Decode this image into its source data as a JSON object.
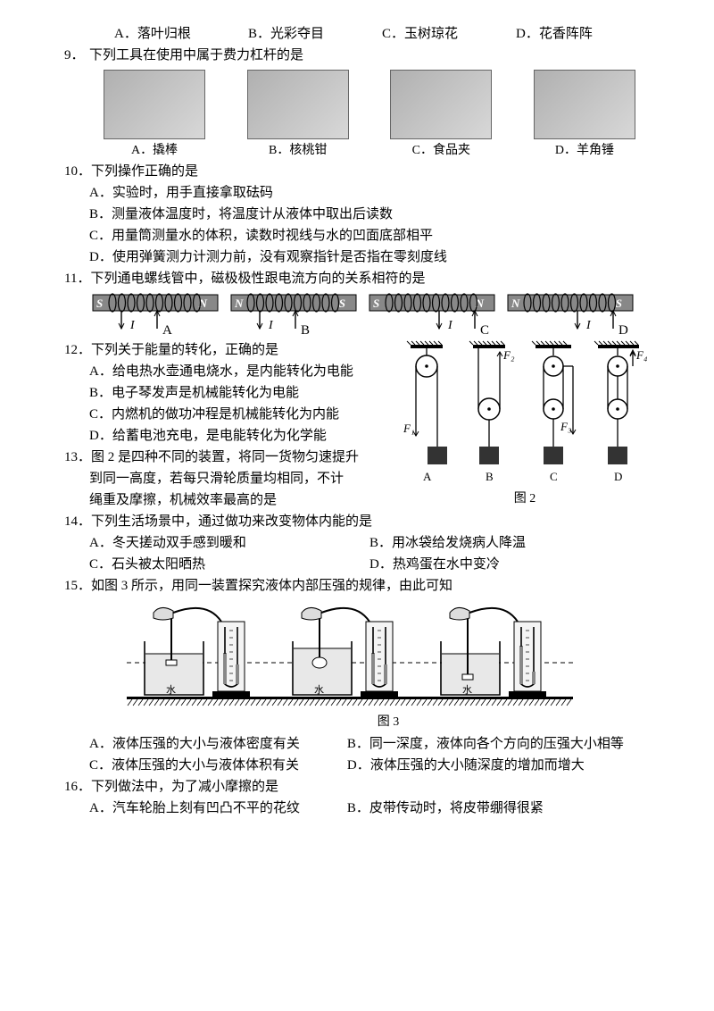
{
  "q8": {
    "options": [
      {
        "letter": "A",
        "text": "．落叶归根"
      },
      {
        "letter": "B",
        "text": "．光彩夺目"
      },
      {
        "letter": "C",
        "text": "．玉树琼花"
      },
      {
        "letter": "D",
        "text": "．花香阵阵"
      }
    ]
  },
  "q9": {
    "num": "9．",
    "stem": "下列工具在使用中属于费力杠杆的是",
    "images": [
      {
        "letter": "A",
        "caption": "．撬棒"
      },
      {
        "letter": "B",
        "caption": "．核桃钳"
      },
      {
        "letter": "C",
        "caption": "．食品夹"
      },
      {
        "letter": "D",
        "caption": "．羊角锤"
      }
    ]
  },
  "q10": {
    "num": "10．",
    "stem": "下列操作正确的是",
    "opts": [
      "A．实验时，用手直接拿取砝码",
      "B．测量液体温度时，将温度计从液体中取出后读数",
      "C．用量筒测量水的体积，读数时视线与水的凹面底部相平",
      "D．使用弹簧测力计测力前，没有观察指针是否指在零刻度线"
    ]
  },
  "q11": {
    "num": "11．",
    "stem": "下列通电螺线管中，磁极极性跟电流方向的关系相符的是",
    "coils": [
      {
        "left": "S",
        "right": "N",
        "letter": "A",
        "current_from": "left"
      },
      {
        "left": "N",
        "right": "S",
        "letter": "B",
        "current_from": "left"
      },
      {
        "left": "S",
        "right": "N",
        "letter": "C",
        "current_from": "right"
      },
      {
        "left": "N",
        "right": "S",
        "letter": "D",
        "current_from": "right"
      }
    ],
    "coil_style": {
      "bar_fill": "#888888",
      "bar_stroke": "#000000",
      "label_fill": "#ffffff",
      "label_fontsize": 13,
      "label_style": "italic bold",
      "coil_stroke": "#000000"
    }
  },
  "q12": {
    "num": "12．",
    "stem": "下列关于能量的转化，正确的是",
    "opts": [
      "A．给电热水壶通电烧水，是内能转化为电能",
      "B．电子琴发声是机械能转化为电能",
      "C．内燃机的做功冲程是机械能转化为内能",
      "D．给蓄电池充电，是电能转化为化学能"
    ]
  },
  "q13": {
    "num": "13．",
    "stem1": "图 2 是四种不同的装置，将同一货物匀速提升",
    "stem2": "到同一高度，若每只滑轮质量均相同，不计",
    "stem3": "绳重及摩擦，机械效率最高的是",
    "pulleys": {
      "labels": [
        "A",
        "B",
        "C",
        "D"
      ],
      "forces": [
        "F₁",
        "F₂",
        "F₃",
        "F₄"
      ]
    },
    "fig_label": "图 2"
  },
  "q14": {
    "num": "14．",
    "stem": "下列生活场景中，通过做功来改变物体内能的是",
    "opts": [
      [
        "A．冬天搓动双手感到暖和",
        "B．用冰袋给发烧病人降温"
      ],
      [
        "C．石头被太阳晒热",
        "D．热鸡蛋在水中变冷"
      ]
    ]
  },
  "q15": {
    "num": "15．",
    "stem": "如图 3 所示，用同一装置探究液体内部压强的规律，由此可知",
    "fig_label": "图 3",
    "opts": [
      [
        "A．液体压强的大小与液体密度有关",
        "B．同一深度，液体向各个方向的压强大小相等"
      ],
      [
        "C．液体压强的大小与液体体积有关",
        "D．液体压强的大小随深度的增加而增大"
      ]
    ]
  },
  "q16": {
    "num": "16．",
    "stem": "下列做法中，为了减小摩擦的是",
    "opts": [
      [
        "A．汽车轮胎上刻有凹凸不平的花纹",
        "B．皮带传动时，将皮带绷得很紧"
      ]
    ]
  }
}
